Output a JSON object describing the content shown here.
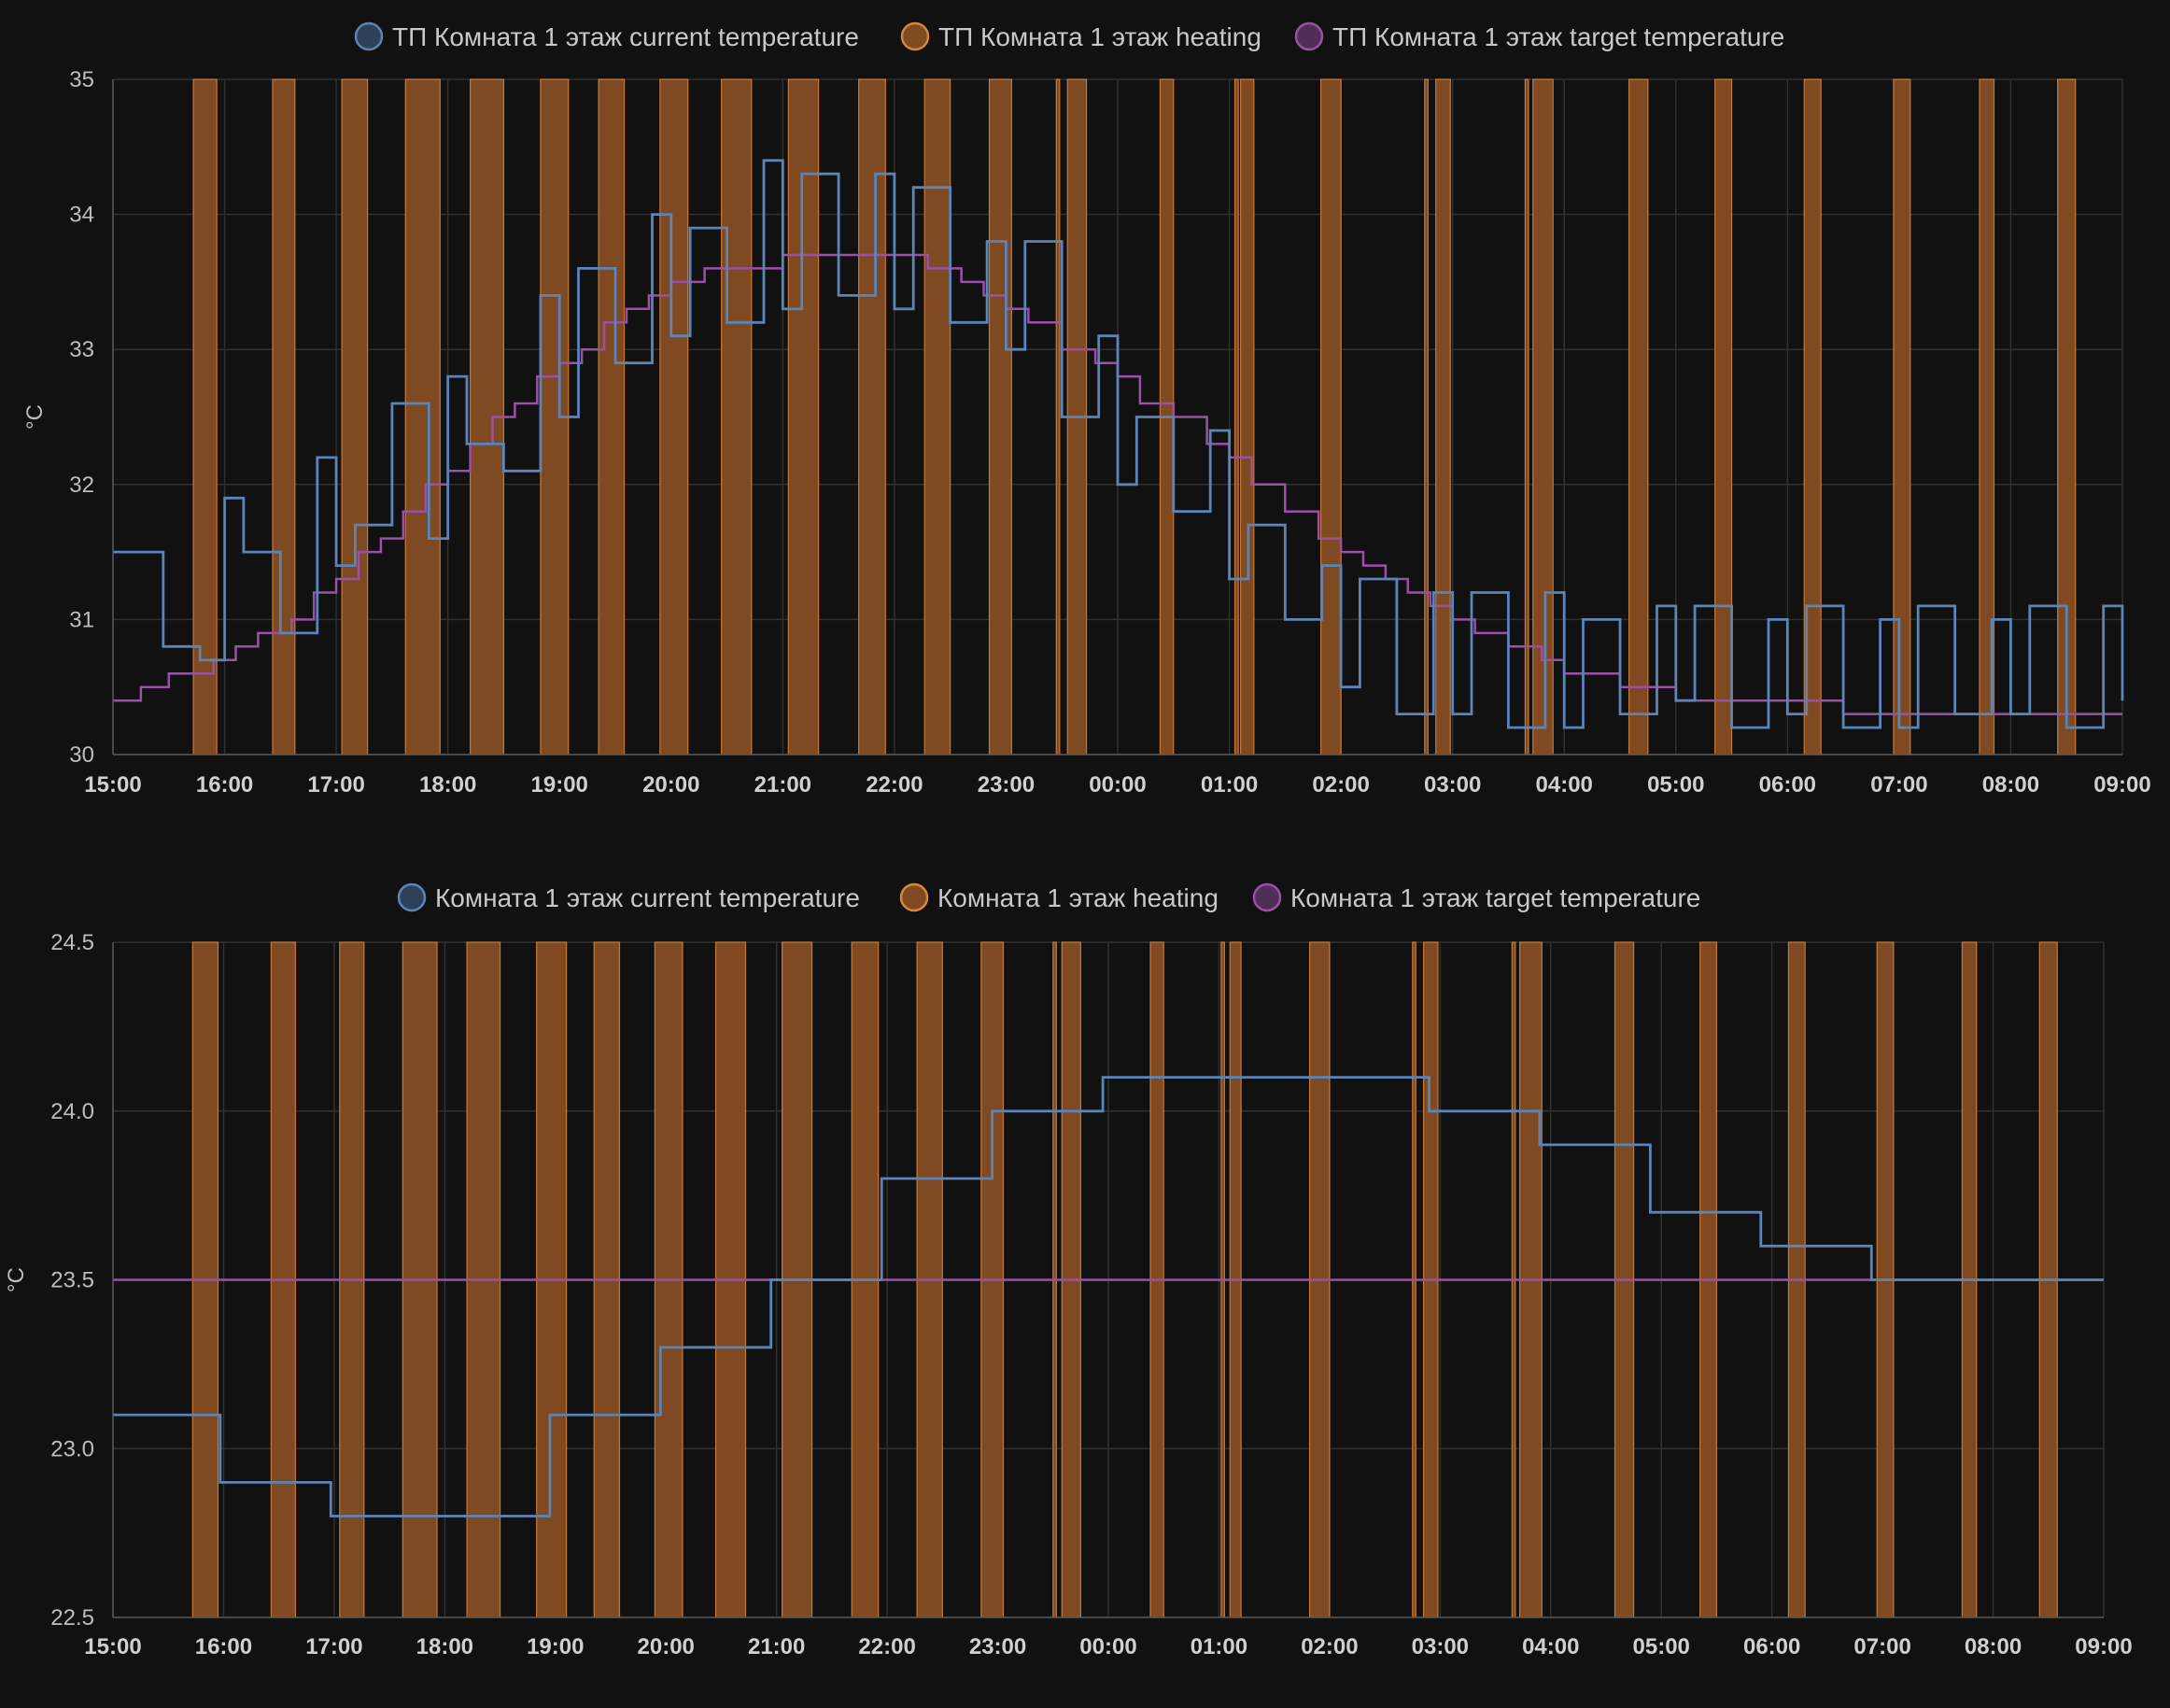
{
  "colors": {
    "background": "#111111",
    "grid": "#303030",
    "current": "#5b84b8",
    "heating": "#d9853b",
    "heating_fill": "#7f4a22",
    "target": "#9b4fa8"
  },
  "chart_data": [
    {
      "type": "line",
      "ylabel": "°C",
      "ylim": [
        30,
        35
      ],
      "yticks": [
        "30",
        "31",
        "32",
        "33",
        "34",
        "35"
      ],
      "xticks": [
        "15:00",
        "16:00",
        "17:00",
        "18:00",
        "19:00",
        "20:00",
        "21:00",
        "22:00",
        "23:00",
        "00:00",
        "01:00",
        "02:00",
        "03:00",
        "04:00",
        "05:00",
        "06:00",
        "07:00",
        "08:00",
        "09:00"
      ],
      "x_range_hours": [
        0,
        18
      ],
      "grid": true,
      "legend_position": "top",
      "series": [
        {
          "name": "ТП Комната 1 этаж current temperature",
          "role": "current",
          "x_hours": [
            0.0,
            0.45,
            0.78,
            1.0,
            1.17,
            1.5,
            1.83,
            2.0,
            2.17,
            2.5,
            2.83,
            3.0,
            3.17,
            3.5,
            3.83,
            4.0,
            4.17,
            4.5,
            4.83,
            5.0,
            5.17,
            5.5,
            5.83,
            6.0,
            6.17,
            6.5,
            6.83,
            7.0,
            7.17,
            7.5,
            7.83,
            8.0,
            8.17,
            8.5,
            8.83,
            9.0,
            9.17,
            9.5,
            9.83,
            10.0,
            10.17,
            10.5,
            10.83,
            11.0,
            11.17,
            11.5,
            11.83,
            12.0,
            12.17,
            12.5,
            12.83,
            13.0,
            13.17,
            13.5,
            13.83,
            14.0,
            14.17,
            14.5,
            14.83,
            15.0,
            15.17,
            15.5,
            15.83,
            16.0,
            16.17,
            16.5,
            16.83,
            17.0,
            17.17,
            17.5,
            17.83,
            18.0
          ],
          "y": [
            31.5,
            30.8,
            30.7,
            31.9,
            31.5,
            30.9,
            32.2,
            31.4,
            31.7,
            32.6,
            31.6,
            32.8,
            32.3,
            32.1,
            33.4,
            32.5,
            33.6,
            32.9,
            34.0,
            33.1,
            33.9,
            33.2,
            34.4,
            33.3,
            34.3,
            33.4,
            34.3,
            33.3,
            34.2,
            33.2,
            33.8,
            33.0,
            33.8,
            32.5,
            33.1,
            32.0,
            32.5,
            31.8,
            32.4,
            31.3,
            31.7,
            31.0,
            31.4,
            30.5,
            31.3,
            30.3,
            31.2,
            30.3,
            31.2,
            30.2,
            31.2,
            30.2,
            31.0,
            30.3,
            31.1,
            30.4,
            31.1,
            30.2,
            31.0,
            30.3,
            31.1,
            30.2,
            31.0,
            30.2,
            31.1,
            30.3,
            31.0,
            30.3,
            31.1,
            30.2,
            31.1,
            30.4
          ]
        },
        {
          "name": "ТП Комната 1 этаж heating",
          "role": "heating",
          "intervals_hours": [
            [
              0.72,
              0.93
            ],
            [
              1.43,
              1.63
            ],
            [
              2.05,
              2.28
            ],
            [
              2.62,
              2.93
            ],
            [
              3.2,
              3.5
            ],
            [
              3.83,
              4.08
            ],
            [
              4.35,
              4.58
            ],
            [
              4.9,
              5.15
            ],
            [
              5.45,
              5.72
            ],
            [
              6.05,
              6.32
            ],
            [
              6.68,
              6.92
            ],
            [
              7.27,
              7.5
            ],
            [
              7.85,
              8.05
            ],
            [
              8.45,
              8.48
            ],
            [
              8.55,
              8.72
            ],
            [
              9.38,
              9.5
            ],
            [
              10.05,
              10.08
            ],
            [
              10.1,
              10.22
            ],
            [
              10.82,
              11.0
            ],
            [
              11.75,
              11.78
            ],
            [
              11.85,
              11.98
            ],
            [
              12.65,
              12.68
            ],
            [
              12.72,
              12.9
            ],
            [
              13.58,
              13.75
            ],
            [
              14.35,
              14.5
            ],
            [
              15.15,
              15.3
            ],
            [
              15.95,
              16.1
            ],
            [
              16.72,
              16.85
            ],
            [
              17.42,
              17.58
            ]
          ]
        },
        {
          "name": "ТП Комната 1 этаж target temperature",
          "role": "target",
          "x_hours": [
            0.0,
            0.25,
            0.5,
            0.9,
            1.1,
            1.3,
            1.6,
            1.8,
            2.0,
            2.2,
            2.4,
            2.6,
            2.8,
            3.0,
            3.2,
            3.4,
            3.6,
            3.8,
            4.0,
            4.2,
            4.4,
            4.6,
            4.8,
            5.0,
            5.3,
            5.6,
            6.0,
            6.5,
            7.0,
            7.3,
            7.6,
            7.8,
            8.0,
            8.2,
            8.5,
            8.8,
            9.0,
            9.2,
            9.5,
            9.8,
            10.0,
            10.2,
            10.5,
            10.8,
            11.0,
            11.2,
            11.4,
            11.6,
            11.8,
            12.0,
            12.2,
            12.5,
            12.8,
            13.0,
            13.2,
            13.5,
            13.8,
            14.0,
            14.5,
            15.0,
            15.5,
            16.0,
            17.0,
            18.0
          ],
          "y": [
            30.4,
            30.5,
            30.6,
            30.7,
            30.8,
            30.9,
            31.0,
            31.2,
            31.3,
            31.5,
            31.6,
            31.8,
            32.0,
            32.1,
            32.3,
            32.5,
            32.6,
            32.8,
            32.9,
            33.0,
            33.2,
            33.3,
            33.4,
            33.5,
            33.6,
            33.6,
            33.7,
            33.7,
            33.7,
            33.6,
            33.5,
            33.4,
            33.3,
            33.2,
            33.0,
            32.9,
            32.8,
            32.6,
            32.5,
            32.3,
            32.2,
            32.0,
            31.8,
            31.6,
            31.5,
            31.4,
            31.3,
            31.2,
            31.1,
            31.0,
            30.9,
            30.8,
            30.7,
            30.6,
            30.6,
            30.5,
            30.5,
            30.4,
            30.4,
            30.4,
            30.3,
            30.3,
            30.3,
            30.3
          ]
        }
      ]
    },
    {
      "type": "line",
      "ylabel": "°C",
      "ylim": [
        22.5,
        24.5
      ],
      "yticks": [
        "22.5",
        "23.0",
        "23.5",
        "24.0",
        "24.5"
      ],
      "xticks": [
        "15:00",
        "16:00",
        "17:00",
        "18:00",
        "19:00",
        "20:00",
        "21:00",
        "22:00",
        "23:00",
        "00:00",
        "01:00",
        "02:00",
        "03:00",
        "04:00",
        "05:00",
        "06:00",
        "07:00",
        "08:00",
        "09:00"
      ],
      "x_range_hours": [
        0,
        18
      ],
      "grid": true,
      "legend_position": "top",
      "series": [
        {
          "name": "Комната 1 этаж current temperature",
          "role": "current",
          "x_hours": [
            0.0,
            0.97,
            1.97,
            3.95,
            4.95,
            5.95,
            6.95,
            7.95,
            8.95,
            9.95,
            11.9,
            12.9,
            13.9,
            14.9,
            15.9,
            18.0
          ],
          "y": [
            23.1,
            22.9,
            22.8,
            23.1,
            23.3,
            23.5,
            23.8,
            24.0,
            24.1,
            24.1,
            24.0,
            23.9,
            23.7,
            23.6,
            23.5,
            23.5
          ]
        },
        {
          "name": "Комната 1 этаж heating",
          "role": "heating",
          "intervals_hours": [
            [
              0.72,
              0.95
            ],
            [
              1.43,
              1.65
            ],
            [
              2.05,
              2.27
            ],
            [
              2.62,
              2.93
            ],
            [
              3.2,
              3.5
            ],
            [
              3.83,
              4.1
            ],
            [
              4.35,
              4.58
            ],
            [
              4.9,
              5.15
            ],
            [
              5.45,
              5.72
            ],
            [
              6.05,
              6.32
            ],
            [
              6.68,
              6.92
            ],
            [
              7.27,
              7.5
            ],
            [
              7.85,
              8.05
            ],
            [
              8.5,
              8.53
            ],
            [
              8.58,
              8.75
            ],
            [
              9.38,
              9.5
            ],
            [
              10.02,
              10.05
            ],
            [
              10.1,
              10.2
            ],
            [
              10.82,
              11.0
            ],
            [
              11.75,
              11.78
            ],
            [
              11.85,
              11.98
            ],
            [
              12.65,
              12.68
            ],
            [
              12.72,
              12.92
            ],
            [
              13.58,
              13.75
            ],
            [
              14.35,
              14.5
            ],
            [
              15.15,
              15.3
            ],
            [
              15.95,
              16.1
            ],
            [
              16.72,
              16.85
            ],
            [
              17.42,
              17.58
            ]
          ]
        },
        {
          "name": "Комната 1 этаж target temperature",
          "role": "target",
          "x_hours": [
            0.0,
            18.0
          ],
          "y": [
            23.5,
            23.5
          ]
        }
      ]
    }
  ]
}
